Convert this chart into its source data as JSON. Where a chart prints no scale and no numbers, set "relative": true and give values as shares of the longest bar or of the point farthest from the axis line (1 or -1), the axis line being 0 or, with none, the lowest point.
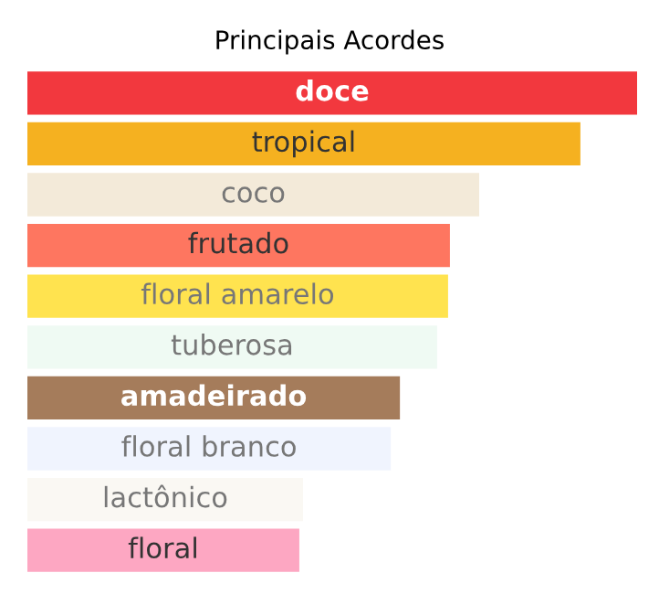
{
  "chart_data": {
    "type": "bar",
    "orientation": "horizontal",
    "relative": true,
    "title": "Principais Acordes",
    "categories": [
      "doce",
      "tropical",
      "coco",
      "frutado",
      "floral amarelo",
      "tuberosa",
      "amadeirado",
      "floral branco",
      "lactônico",
      "floral"
    ],
    "values": [
      1,
      0.907,
      0.741,
      0.693,
      0.69,
      0.672,
      0.611,
      0.596,
      0.452,
      0.446
    ],
    "colors": [
      "#f2383e",
      "#f5b120",
      "#f3ead9",
      "#fe7660",
      "#ffe34f",
      "#effaf3",
      "#a57c5b",
      "#f0f4fe",
      "#faf8f3",
      "#fda7c2"
    ]
  }
}
